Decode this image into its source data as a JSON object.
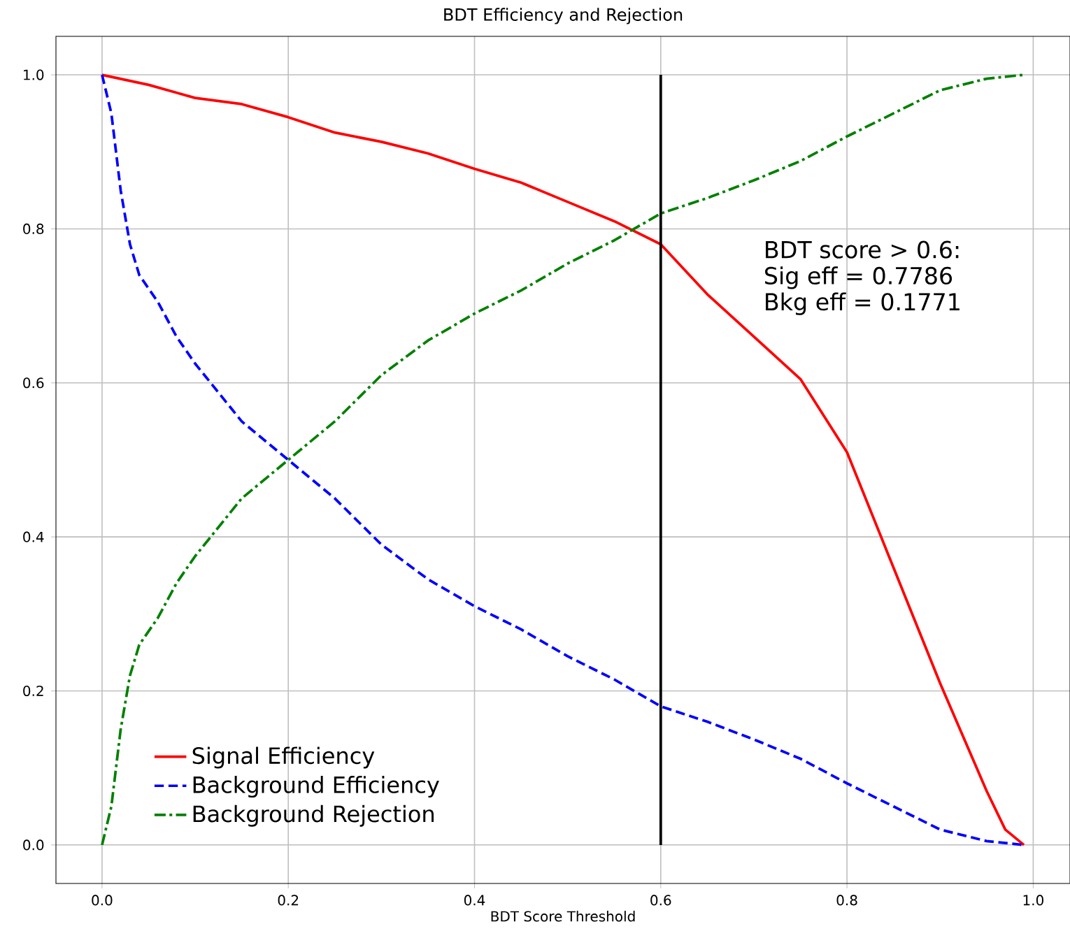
{
  "chart_data": {
    "type": "line",
    "title": "BDT Efficiency and Rejection",
    "xlabel": "BDT Score Threshold",
    "xlim": [
      -0.0495,
      1.0395
    ],
    "ylim": [
      -0.05,
      1.05
    ],
    "xticks": [
      {
        "value": 0,
        "label": "0.0"
      },
      {
        "value": 0.2,
        "label": "0.2"
      },
      {
        "value": 0.4,
        "label": "0.4"
      },
      {
        "value": 0.6,
        "label": "0.6"
      },
      {
        "value": 0.8,
        "label": "0.8"
      },
      {
        "value": 1,
        "label": "1.0"
      }
    ],
    "yticks": [
      {
        "value": 0,
        "label": "0.0"
      },
      {
        "value": 0.2,
        "label": "0.2"
      },
      {
        "value": 0.4,
        "label": "0.4"
      },
      {
        "value": 0.6,
        "label": "0.6"
      },
      {
        "value": 0.8,
        "label": "0.8"
      },
      {
        "value": 1,
        "label": "1.0"
      }
    ],
    "grid": true,
    "legend": "bottom left",
    "series": [
      {
        "name": "Signal Efficiency",
        "color": "#ff0000",
        "line_style": "solid",
        "x": [
          0,
          0.05,
          0.1,
          0.15,
          0.2,
          0.25,
          0.3,
          0.35,
          0.4,
          0.45,
          0.5,
          0.55,
          0.6,
          0.65,
          0.7,
          0.75,
          0.8,
          0.85,
          0.9,
          0.95,
          0.97,
          0.99
        ],
        "values": [
          1.0,
          0.987,
          0.97,
          0.962,
          0.945,
          0.925,
          0.913,
          0.898,
          0.878,
          0.86,
          0.835,
          0.81,
          0.78,
          0.715,
          0.66,
          0.605,
          0.51,
          0.36,
          0.21,
          0.07,
          0.02,
          0.0
        ]
      },
      {
        "name": "Background Efficiency",
        "color": "#0000ff",
        "line_style": "dashed",
        "x": [
          0,
          0.01,
          0.02,
          0.03,
          0.04,
          0.06,
          0.08,
          0.1,
          0.15,
          0.2,
          0.25,
          0.3,
          0.35,
          0.4,
          0.45,
          0.5,
          0.55,
          0.6,
          0.65,
          0.7,
          0.75,
          0.8,
          0.85,
          0.9,
          0.95,
          0.99
        ],
        "values": [
          1.0,
          0.95,
          0.85,
          0.78,
          0.74,
          0.705,
          0.66,
          0.625,
          0.55,
          0.5,
          0.45,
          0.39,
          0.345,
          0.31,
          0.28,
          0.245,
          0.215,
          0.18,
          0.16,
          0.137,
          0.112,
          0.08,
          0.05,
          0.02,
          0.005,
          0.0
        ]
      },
      {
        "name": "Background Rejection",
        "color": "#008000",
        "line_style": "dashdot",
        "x": [
          0,
          0.01,
          0.02,
          0.03,
          0.04,
          0.06,
          0.08,
          0.1,
          0.15,
          0.2,
          0.25,
          0.3,
          0.35,
          0.4,
          0.45,
          0.5,
          0.55,
          0.6,
          0.65,
          0.7,
          0.75,
          0.8,
          0.85,
          0.9,
          0.95,
          0.99
        ],
        "values": [
          0.0,
          0.05,
          0.15,
          0.22,
          0.26,
          0.295,
          0.34,
          0.375,
          0.45,
          0.5,
          0.55,
          0.61,
          0.655,
          0.69,
          0.72,
          0.755,
          0.785,
          0.82,
          0.84,
          0.863,
          0.888,
          0.92,
          0.95,
          0.98,
          0.995,
          1.0
        ]
      },
      {
        "color": "#000000",
        "line_style": "solid",
        "x": [
          0.6,
          0.6
        ],
        "values": [
          0,
          1
        ]
      }
    ],
    "annotations": [
      "BDT score > 0.6:",
      "Sig eff = 0.7786",
      "Bkg eff = 0.1771"
    ]
  }
}
